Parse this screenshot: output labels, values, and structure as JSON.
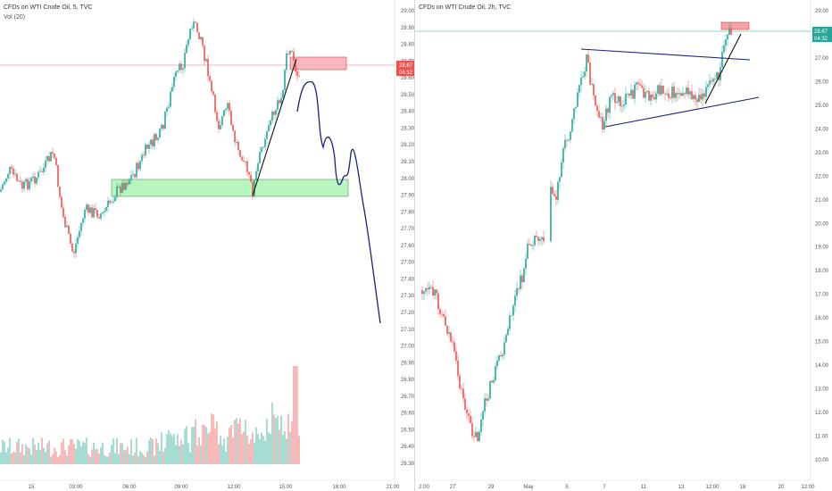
{
  "left_chart": {
    "title": "CFDs on WTI Crude Oil, 5, TVC",
    "volume_label": "Vol (20)",
    "price_ticks": [
      "29.00",
      "28.90",
      "28.80",
      "28.70",
      "28.60",
      "28.50",
      "28.40",
      "28.30",
      "28.20",
      "28.10",
      "28.00",
      "27.90",
      "27.80",
      "27.70",
      "27.60",
      "27.50",
      "27.40",
      "27.30",
      "27.20",
      "27.10",
      "27.00",
      "26.90",
      "26.80",
      "26.70",
      "26.60",
      "26.50",
      "26.40",
      "26.30"
    ],
    "time_ticks": [
      "15",
      "03:00",
      "06:00",
      "09:00",
      "12:00",
      "15:00",
      "18:00",
      "21:00"
    ],
    "last_price": "28.67",
    "countdown": "04:32",
    "colors": {
      "up": "#26a69a",
      "down": "#ef5350",
      "support_zone": "#7cf08a",
      "resistance_zone": "#f4a3a8",
      "projection": "#1a237e"
    }
  },
  "right_chart": {
    "title": "CFDs on WTI Crude Oil, 2h, TVC",
    "price_ticks": [
      "29.00",
      "28.00",
      "27.00",
      "26.00",
      "25.00",
      "24.00",
      "23.00",
      "22.00",
      "21.00",
      "20.00",
      "19.00",
      "18.00",
      "17.00",
      "16.00",
      "15.00",
      "14.00",
      "13.00",
      "12.00",
      "11.00",
      "10.00"
    ],
    "time_ticks": [
      "2:00",
      "27",
      "29",
      "May",
      "5",
      "7",
      "11",
      "13",
      "12:00",
      "18",
      "20",
      "12:00"
    ],
    "last_price": "28.67",
    "countdown": "04:32"
  }
}
